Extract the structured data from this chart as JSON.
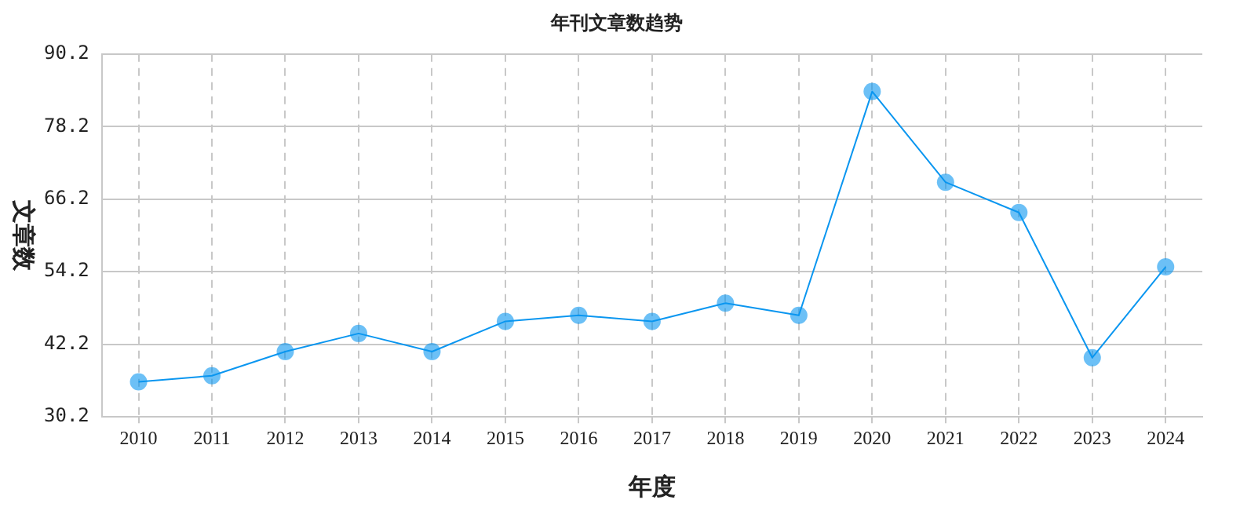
{
  "chart_data": {
    "type": "line",
    "title": "年刊文章数趋势",
    "xlabel": "年度",
    "ylabel": "文章数",
    "categories": [
      "2010",
      "2011",
      "2012",
      "2013",
      "2014",
      "2015",
      "2016",
      "2017",
      "2018",
      "2019",
      "2020",
      "2021",
      "2022",
      "2023",
      "2024"
    ],
    "series": [
      {
        "color": "#0a96f0",
        "values": [
          36,
          37,
          41,
          44,
          41,
          46,
          47,
          46,
          49,
          47,
          84,
          69,
          64,
          40,
          55
        ]
      }
    ],
    "ylim": [
      30.2,
      90.2
    ],
    "yticks": [
      {
        "value": 30.2,
        "label": "30.2"
      },
      {
        "value": 42.2,
        "label": "42.2"
      },
      {
        "value": 54.2,
        "label": "54.2"
      },
      {
        "value": 66.2,
        "label": "66.2"
      },
      {
        "value": 78.2,
        "label": "78.2"
      },
      {
        "value": 90.2,
        "label": "90.2"
      }
    ],
    "grid": true,
    "legend": false,
    "marker": "circle",
    "line_style": "solid"
  }
}
